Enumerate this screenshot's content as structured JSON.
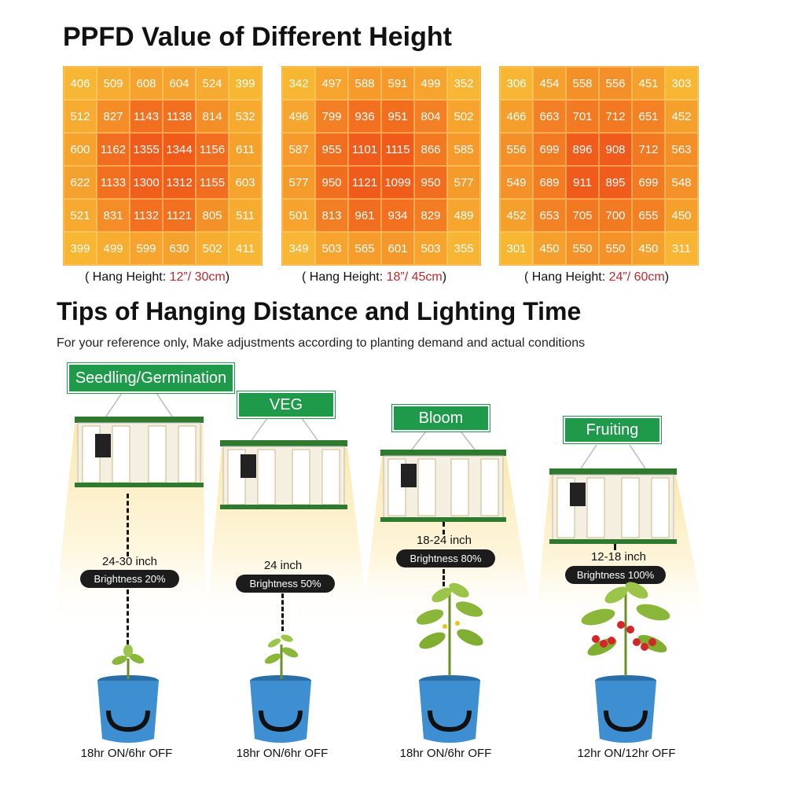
{
  "header": {
    "title": "PPFD Value of Different Height"
  },
  "ppfd_grids": [
    {
      "hang_prefix": "( Hang Height: ",
      "hang_value": "12”/ 30cm",
      "hang_suffix": ")",
      "values": [
        [
          406,
          509,
          608,
          604,
          524,
          399
        ],
        [
          512,
          827,
          1143,
          1138,
          814,
          532
        ],
        [
          600,
          1162,
          1355,
          1344,
          1156,
          611
        ],
        [
          622,
          1133,
          1300,
          1312,
          1155,
          603
        ],
        [
          521,
          831,
          1132,
          1121,
          805,
          511
        ],
        [
          399,
          499,
          599,
          630,
          502,
          411
        ]
      ]
    },
    {
      "hang_prefix": "( Hang Height: ",
      "hang_value": "18”/ 45cm",
      "hang_suffix": ")",
      "values": [
        [
          342,
          497,
          588,
          591,
          499,
          352
        ],
        [
          496,
          799,
          936,
          951,
          804,
          502
        ],
        [
          587,
          955,
          1101,
          1115,
          866,
          585
        ],
        [
          577,
          950,
          1121,
          1099,
          950,
          577
        ],
        [
          501,
          813,
          961,
          934,
          829,
          489
        ],
        [
          349,
          503,
          565,
          601,
          503,
          355
        ]
      ]
    },
    {
      "hang_prefix": "( Hang Height: ",
      "hang_value": "24”/ 60cm",
      "hang_suffix": ")",
      "values": [
        [
          306,
          454,
          558,
          556,
          451,
          303
        ],
        [
          466,
          663,
          701,
          712,
          651,
          452
        ],
        [
          556,
          699,
          896,
          908,
          712,
          563
        ],
        [
          549,
          689,
          911,
          895,
          699,
          548
        ],
        [
          452,
          653,
          705,
          700,
          655,
          450
        ],
        [
          301,
          450,
          550,
          550,
          450,
          311
        ]
      ]
    }
  ],
  "tips": {
    "title": "Tips of Hanging Distance and Lighting Time",
    "note": "For your reference only, Make adjustments according to planting demand and actual conditions"
  },
  "stages": [
    {
      "label": "Seedling/Germination",
      "distance": "24-30 inch",
      "brightness": "Brightness 20%",
      "schedule": "18hr ON/6hr OFF",
      "plant": "seedling"
    },
    {
      "label": "VEG",
      "distance": "24 inch",
      "brightness": "Brightness 50%",
      "schedule": "18hr ON/6hr OFF",
      "plant": "sprout"
    },
    {
      "label": "Bloom",
      "distance": "18-24 inch",
      "brightness": "Brightness 80%",
      "schedule": "18hr ON/6hr OFF",
      "plant": "tomato-plant"
    },
    {
      "label": "Fruiting",
      "distance": "12-18 inch",
      "brightness": "Brightness 100%",
      "schedule": "12hr ON/12hr OFF",
      "plant": "fruiting-tomato"
    }
  ],
  "colors": {
    "ppfd_low": "#f7b733",
    "ppfd_high": "#f05a1a",
    "label_green": "#1f9a4a",
    "pot_blue": "#3d8fd1",
    "fixture_green": "#2f7a2e",
    "pill_bg": "#1c1c1c",
    "hang_value_red": "#c0282d"
  }
}
